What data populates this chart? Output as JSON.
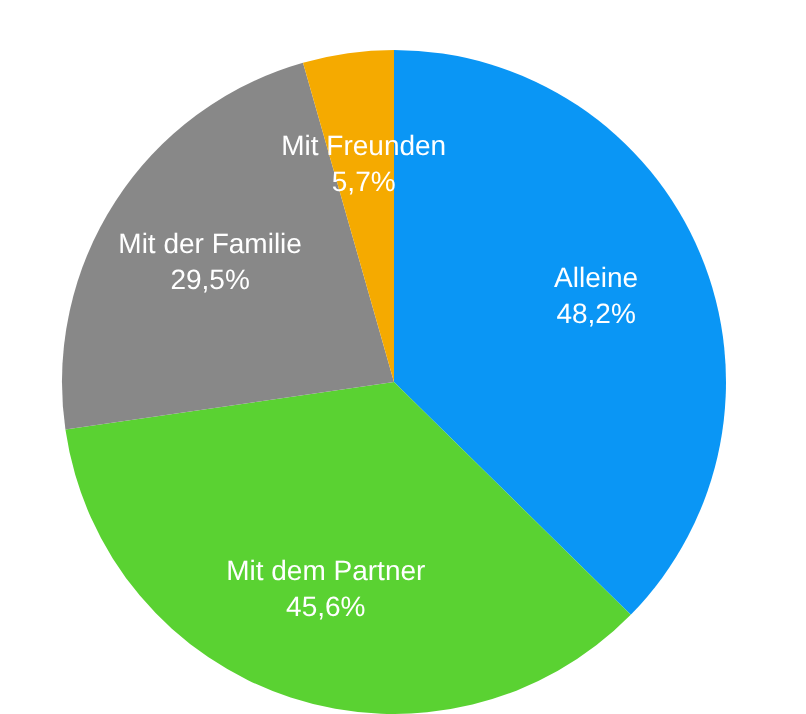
{
  "chart_data": {
    "type": "pie",
    "categories": [
      "Alleine",
      "Mit dem Partner",
      "Mit der Familie",
      "Mit Freunden"
    ],
    "values": [
      48.2,
      45.6,
      29.5,
      5.7
    ],
    "colors": [
      "#0a96f5",
      "#5ad232",
      "#888888",
      "#f5aa00"
    ],
    "value_labels": [
      "48,2%",
      "45,6%",
      "29,5%",
      "5,7%"
    ],
    "legend": false
  }
}
